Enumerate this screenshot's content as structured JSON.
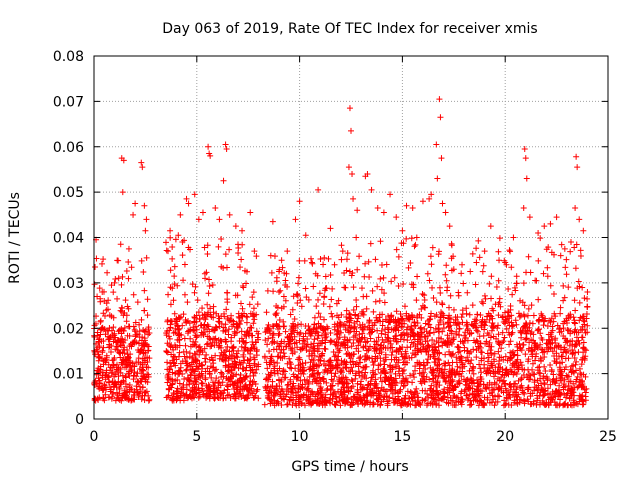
{
  "chart_data": {
    "type": "scatter",
    "title": "Day 063 of 2019, Rate Of TEC Index for receiver xmis",
    "xlabel": "GPS time / hours",
    "ylabel": "ROTI / TECUs",
    "xlim": [
      0,
      25
    ],
    "ylim": [
      0,
      0.08
    ],
    "xticks": [
      0,
      5,
      10,
      15,
      20,
      25
    ],
    "xtick_labels": [
      "0",
      "5",
      "10",
      "15",
      "20",
      "25"
    ],
    "yticks": [
      0,
      0.01,
      0.02,
      0.03,
      0.04,
      0.05,
      0.06,
      0.07,
      0.08
    ],
    "ytick_labels": [
      "0",
      "0.01",
      "0.02",
      "0.03",
      "0.04",
      "0.05",
      "0.06",
      "0.07",
      "0.08"
    ],
    "grid": true,
    "marker": "+",
    "color": "#ff0000",
    "series": [
      {
        "name": "ROTI",
        "points": [
          [
            0.05,
            0.0335
          ],
          [
            0.1,
            0.0395
          ],
          [
            0.15,
            0.027
          ],
          [
            0.3,
            0.0265
          ],
          [
            0.4,
            0.028
          ],
          [
            0.5,
            0.026
          ],
          [
            0.6,
            0.024
          ],
          [
            0.85,
            0.0295
          ],
          [
            1.0,
            0.03
          ],
          [
            1.3,
            0.0385
          ],
          [
            1.35,
            0.0575
          ],
          [
            1.45,
            0.057
          ],
          [
            1.4,
            0.05
          ],
          [
            1.7,
            0.0375
          ],
          [
            1.9,
            0.045
          ],
          [
            2.0,
            0.0475
          ],
          [
            2.3,
            0.0565
          ],
          [
            2.35,
            0.0555
          ],
          [
            2.45,
            0.047
          ],
          [
            2.5,
            0.0415
          ],
          [
            2.55,
            0.044
          ],
          [
            3.6,
            0.037
          ],
          [
            3.7,
            0.0415
          ],
          [
            3.9,
            0.0315
          ],
          [
            4.1,
            0.0405
          ],
          [
            4.2,
            0.045
          ],
          [
            4.3,
            0.039
          ],
          [
            4.5,
            0.0485
          ],
          [
            4.6,
            0.0475
          ],
          [
            4.9,
            0.0495
          ],
          [
            5.1,
            0.044
          ],
          [
            5.3,
            0.0455
          ],
          [
            5.55,
            0.06
          ],
          [
            5.6,
            0.0585
          ],
          [
            5.65,
            0.058
          ],
          [
            5.9,
            0.0465
          ],
          [
            6.1,
            0.044
          ],
          [
            6.3,
            0.0525
          ],
          [
            6.4,
            0.0605
          ],
          [
            6.45,
            0.0595
          ],
          [
            6.6,
            0.045
          ],
          [
            6.9,
            0.0425
          ],
          [
            7.2,
            0.0415
          ],
          [
            7.6,
            0.0455
          ],
          [
            7.8,
            0.037
          ],
          [
            8.6,
            0.036
          ],
          [
            8.7,
            0.0435
          ],
          [
            9.0,
            0.0325
          ],
          [
            9.4,
            0.037
          ],
          [
            9.8,
            0.044
          ],
          [
            10.0,
            0.048
          ],
          [
            10.3,
            0.0405
          ],
          [
            10.6,
            0.0345
          ],
          [
            10.9,
            0.0505
          ],
          [
            11.2,
            0.0355
          ],
          [
            11.5,
            0.042
          ],
          [
            11.7,
            0.034
          ],
          [
            12.1,
            0.037
          ],
          [
            12.4,
            0.0555
          ],
          [
            12.45,
            0.0685
          ],
          [
            12.5,
            0.0635
          ],
          [
            12.55,
            0.054
          ],
          [
            12.6,
            0.0485
          ],
          [
            12.8,
            0.046
          ],
          [
            13.2,
            0.0535
          ],
          [
            13.3,
            0.054
          ],
          [
            13.5,
            0.0505
          ],
          [
            13.8,
            0.0465
          ],
          [
            14.1,
            0.0455
          ],
          [
            14.4,
            0.0495
          ],
          [
            14.7,
            0.0445
          ],
          [
            15.0,
            0.0415
          ],
          [
            15.2,
            0.047
          ],
          [
            15.5,
            0.0465
          ],
          [
            15.7,
            0.04
          ],
          [
            16.0,
            0.048
          ],
          [
            16.3,
            0.0485
          ],
          [
            16.4,
            0.0495
          ],
          [
            16.65,
            0.0605
          ],
          [
            16.7,
            0.053
          ],
          [
            16.8,
            0.0705
          ],
          [
            16.85,
            0.0665
          ],
          [
            16.9,
            0.0575
          ],
          [
            16.95,
            0.0475
          ],
          [
            17.1,
            0.0455
          ],
          [
            17.3,
            0.0425
          ],
          [
            17.5,
            0.033
          ],
          [
            17.9,
            0.034
          ],
          [
            18.3,
            0.0325
          ],
          [
            18.6,
            0.0345
          ],
          [
            19.0,
            0.037
          ],
          [
            19.3,
            0.0425
          ],
          [
            19.7,
            0.035
          ],
          [
            20.0,
            0.0345
          ],
          [
            20.4,
            0.04
          ],
          [
            20.9,
            0.0465
          ],
          [
            20.95,
            0.0595
          ],
          [
            21.0,
            0.0575
          ],
          [
            21.05,
            0.053
          ],
          [
            21.2,
            0.0445
          ],
          [
            21.6,
            0.041
          ],
          [
            21.9,
            0.0425
          ],
          [
            22.2,
            0.043
          ],
          [
            22.5,
            0.0445
          ],
          [
            22.9,
            0.0375
          ],
          [
            23.2,
            0.039
          ],
          [
            23.4,
            0.0465
          ],
          [
            23.45,
            0.0578
          ],
          [
            23.5,
            0.0555
          ],
          [
            23.6,
            0.044
          ],
          [
            23.8,
            0.0415
          ],
          [
            24.0,
            0.028
          ]
        ],
        "dense_segments": [
          {
            "start": 0.0,
            "end": 2.7,
            "base_min": 0.004,
            "typical_max": 0.026,
            "peak": 0.036
          },
          {
            "start": 3.5,
            "end": 4.5,
            "base_min": 0.004,
            "typical_max": 0.03,
            "peak": 0.04
          },
          {
            "start": 4.5,
            "end": 8.0,
            "base_min": 0.0045,
            "typical_max": 0.03,
            "peak": 0.04
          },
          {
            "start": 8.3,
            "end": 12.0,
            "base_min": 0.003,
            "typical_max": 0.027,
            "peak": 0.036
          },
          {
            "start": 12.0,
            "end": 24.0,
            "base_min": 0.003,
            "typical_max": 0.03,
            "peak": 0.04
          }
        ]
      }
    ]
  }
}
